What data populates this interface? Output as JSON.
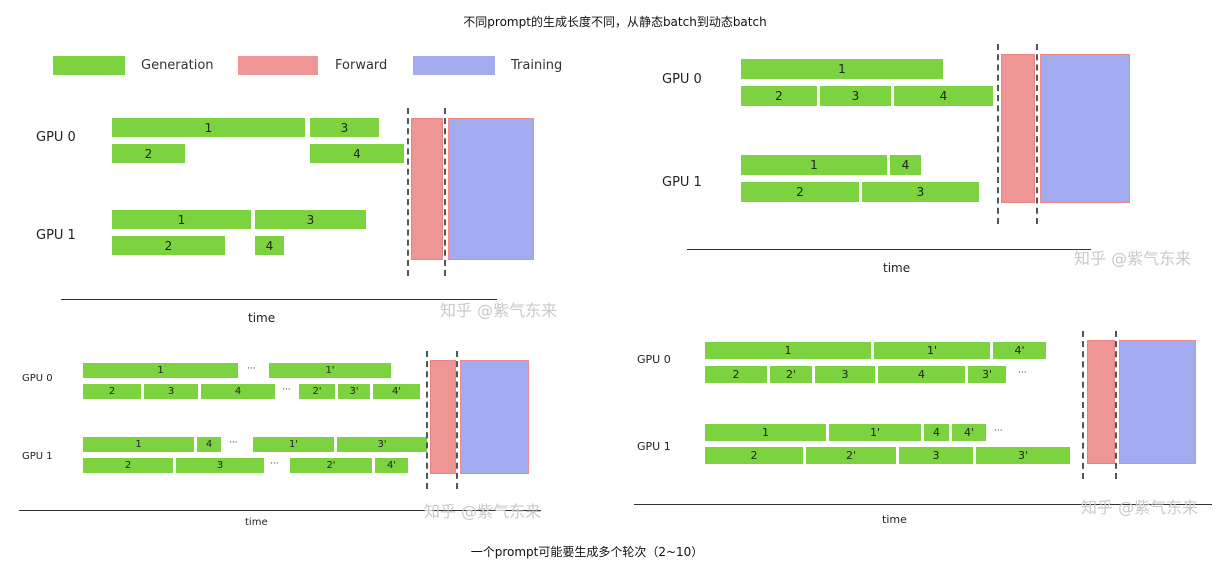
{
  "title": "不同prompt的生成长度不同，从静态batch到动态batch",
  "footer_caption": "一个prompt可能要生成多个轮次（2~10）",
  "colors": {
    "generation": "#7dd240",
    "forward": "#ee9696",
    "training": "#a4acf1"
  },
  "legend": {
    "generation": "Generation",
    "forward": "Forward",
    "training": "Training"
  },
  "panel_tl": {
    "gpu0": "GPU 0",
    "gpu1": "GPU 1",
    "time": "time",
    "watermark": "知乎 @紫气东来",
    "bars": {
      "g0a1": "1",
      "g0a3": "3",
      "g0b2": "2",
      "g0b4": "4",
      "g1a1": "1",
      "g1a3": "3",
      "g1b2": "2",
      "g1b4": "4"
    }
  },
  "panel_tr": {
    "gpu0": "GPU 0",
    "gpu1": "GPU 1",
    "time": "time",
    "watermark": "知乎 @紫气东来",
    "bars": {
      "g0a1": "1",
      "g0b2": "2",
      "g0b3": "3",
      "g0b4": "4",
      "g1a1": "1",
      "g1a4": "4",
      "g1b2": "2",
      "g1b3": "3"
    }
  },
  "panel_bl": {
    "gpu0": "GPU 0",
    "gpu1": "GPU 1",
    "time": "time",
    "watermark": "知乎 @紫气东来",
    "ellipsis": "···",
    "bars": {
      "g0a1": "1",
      "g0a1p": "1'",
      "g0b2": "2",
      "g0b3": "3",
      "g0b4": "4",
      "g0b2p": "2'",
      "g0b3p": "3'",
      "g0b4p": "4'",
      "g1a1": "1",
      "g1a4": "4",
      "g1a1p": "1'",
      "g1a3p": "3'",
      "g1b2": "2",
      "g1b3": "3",
      "g1b2p": "2'",
      "g1b4p": "4'"
    }
  },
  "panel_br": {
    "gpu0": "GPU 0",
    "gpu1": "GPU 1",
    "time": "time",
    "watermark": "知乎 @紫气东来",
    "ellipsis": "···",
    "bars": {
      "g0a1": "1",
      "g0a1p": "1'",
      "g0a4p": "4'",
      "g0b2": "2",
      "g0b2p": "2'",
      "g0b3": "3",
      "g0b4": "4",
      "g0b3p": "3'",
      "g1a1": "1",
      "g1a1p": "1'",
      "g1a4": "4",
      "g1a4p": "4'",
      "g1b2": "2",
      "g1b2p": "2'",
      "g1b3": "3",
      "g1b3p": "3'"
    }
  }
}
